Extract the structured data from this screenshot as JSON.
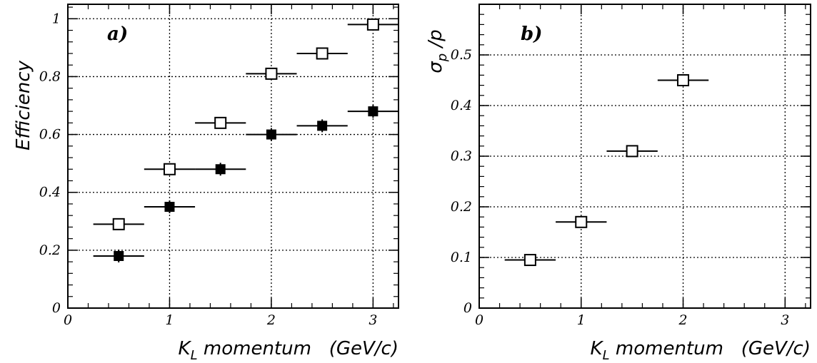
{
  "chart_data": [
    {
      "type": "scatter",
      "panel_label": "a)",
      "ylabel": "Efficiency",
      "xlabel": "K",
      "xlabel_sub": "L",
      "xlabel_rest": " momentum   (GeV/c)",
      "xlim": [
        0,
        3.25
      ],
      "ylim": [
        0,
        1.05
      ],
      "x_ticks": [
        "0",
        "1",
        "2",
        "3"
      ],
      "y_ticks": [
        "0",
        "0.2",
        "0.4",
        "0.6",
        "0.8",
        "1"
      ],
      "grid": true,
      "series": [
        {
          "marker": "open-square",
          "points": [
            {
              "x": 0.5,
              "y": 0.29,
              "xerr": 0.25
            },
            {
              "x": 1.0,
              "y": 0.48,
              "xerr": 0.25
            },
            {
              "x": 1.5,
              "y": 0.64,
              "xerr": 0.25
            },
            {
              "x": 2.0,
              "y": 0.81,
              "xerr": 0.25
            },
            {
              "x": 2.5,
              "y": 0.88,
              "xerr": 0.25
            },
            {
              "x": 3.0,
              "y": 0.98,
              "xerr": 0.25
            }
          ]
        },
        {
          "marker": "filled-square",
          "points": [
            {
              "x": 0.5,
              "y": 0.18,
              "xerr": 0.25
            },
            {
              "x": 1.0,
              "y": 0.35,
              "xerr": 0.25
            },
            {
              "x": 1.5,
              "y": 0.48,
              "xerr": 0.25
            },
            {
              "x": 2.0,
              "y": 0.6,
              "xerr": 0.25
            },
            {
              "x": 2.5,
              "y": 0.63,
              "xerr": 0.25
            },
            {
              "x": 3.0,
              "y": 0.68,
              "xerr": 0.25
            }
          ]
        }
      ]
    },
    {
      "type": "scatter",
      "panel_label": "b)",
      "ylabel": "σ",
      "ylabel_sub": "p",
      "ylabel_rest": " /p",
      "xlabel": "K",
      "xlabel_sub": "L",
      "xlabel_rest": " momentum   (GeV/c)",
      "xlim": [
        0,
        3.25
      ],
      "ylim": [
        0,
        0.6
      ],
      "x_ticks": [
        "0",
        "1",
        "2",
        "3"
      ],
      "y_ticks": [
        "0",
        "0.1",
        "0.2",
        "0.3",
        "0.4",
        "0.5"
      ],
      "grid": true,
      "series": [
        {
          "marker": "open-square",
          "points": [
            {
              "x": 0.5,
              "y": 0.095,
              "xerr": 0.25
            },
            {
              "x": 1.0,
              "y": 0.17,
              "xerr": 0.25
            },
            {
              "x": 1.5,
              "y": 0.31,
              "xerr": 0.25
            },
            {
              "x": 2.0,
              "y": 0.45,
              "xerr": 0.25
            }
          ]
        }
      ]
    }
  ]
}
